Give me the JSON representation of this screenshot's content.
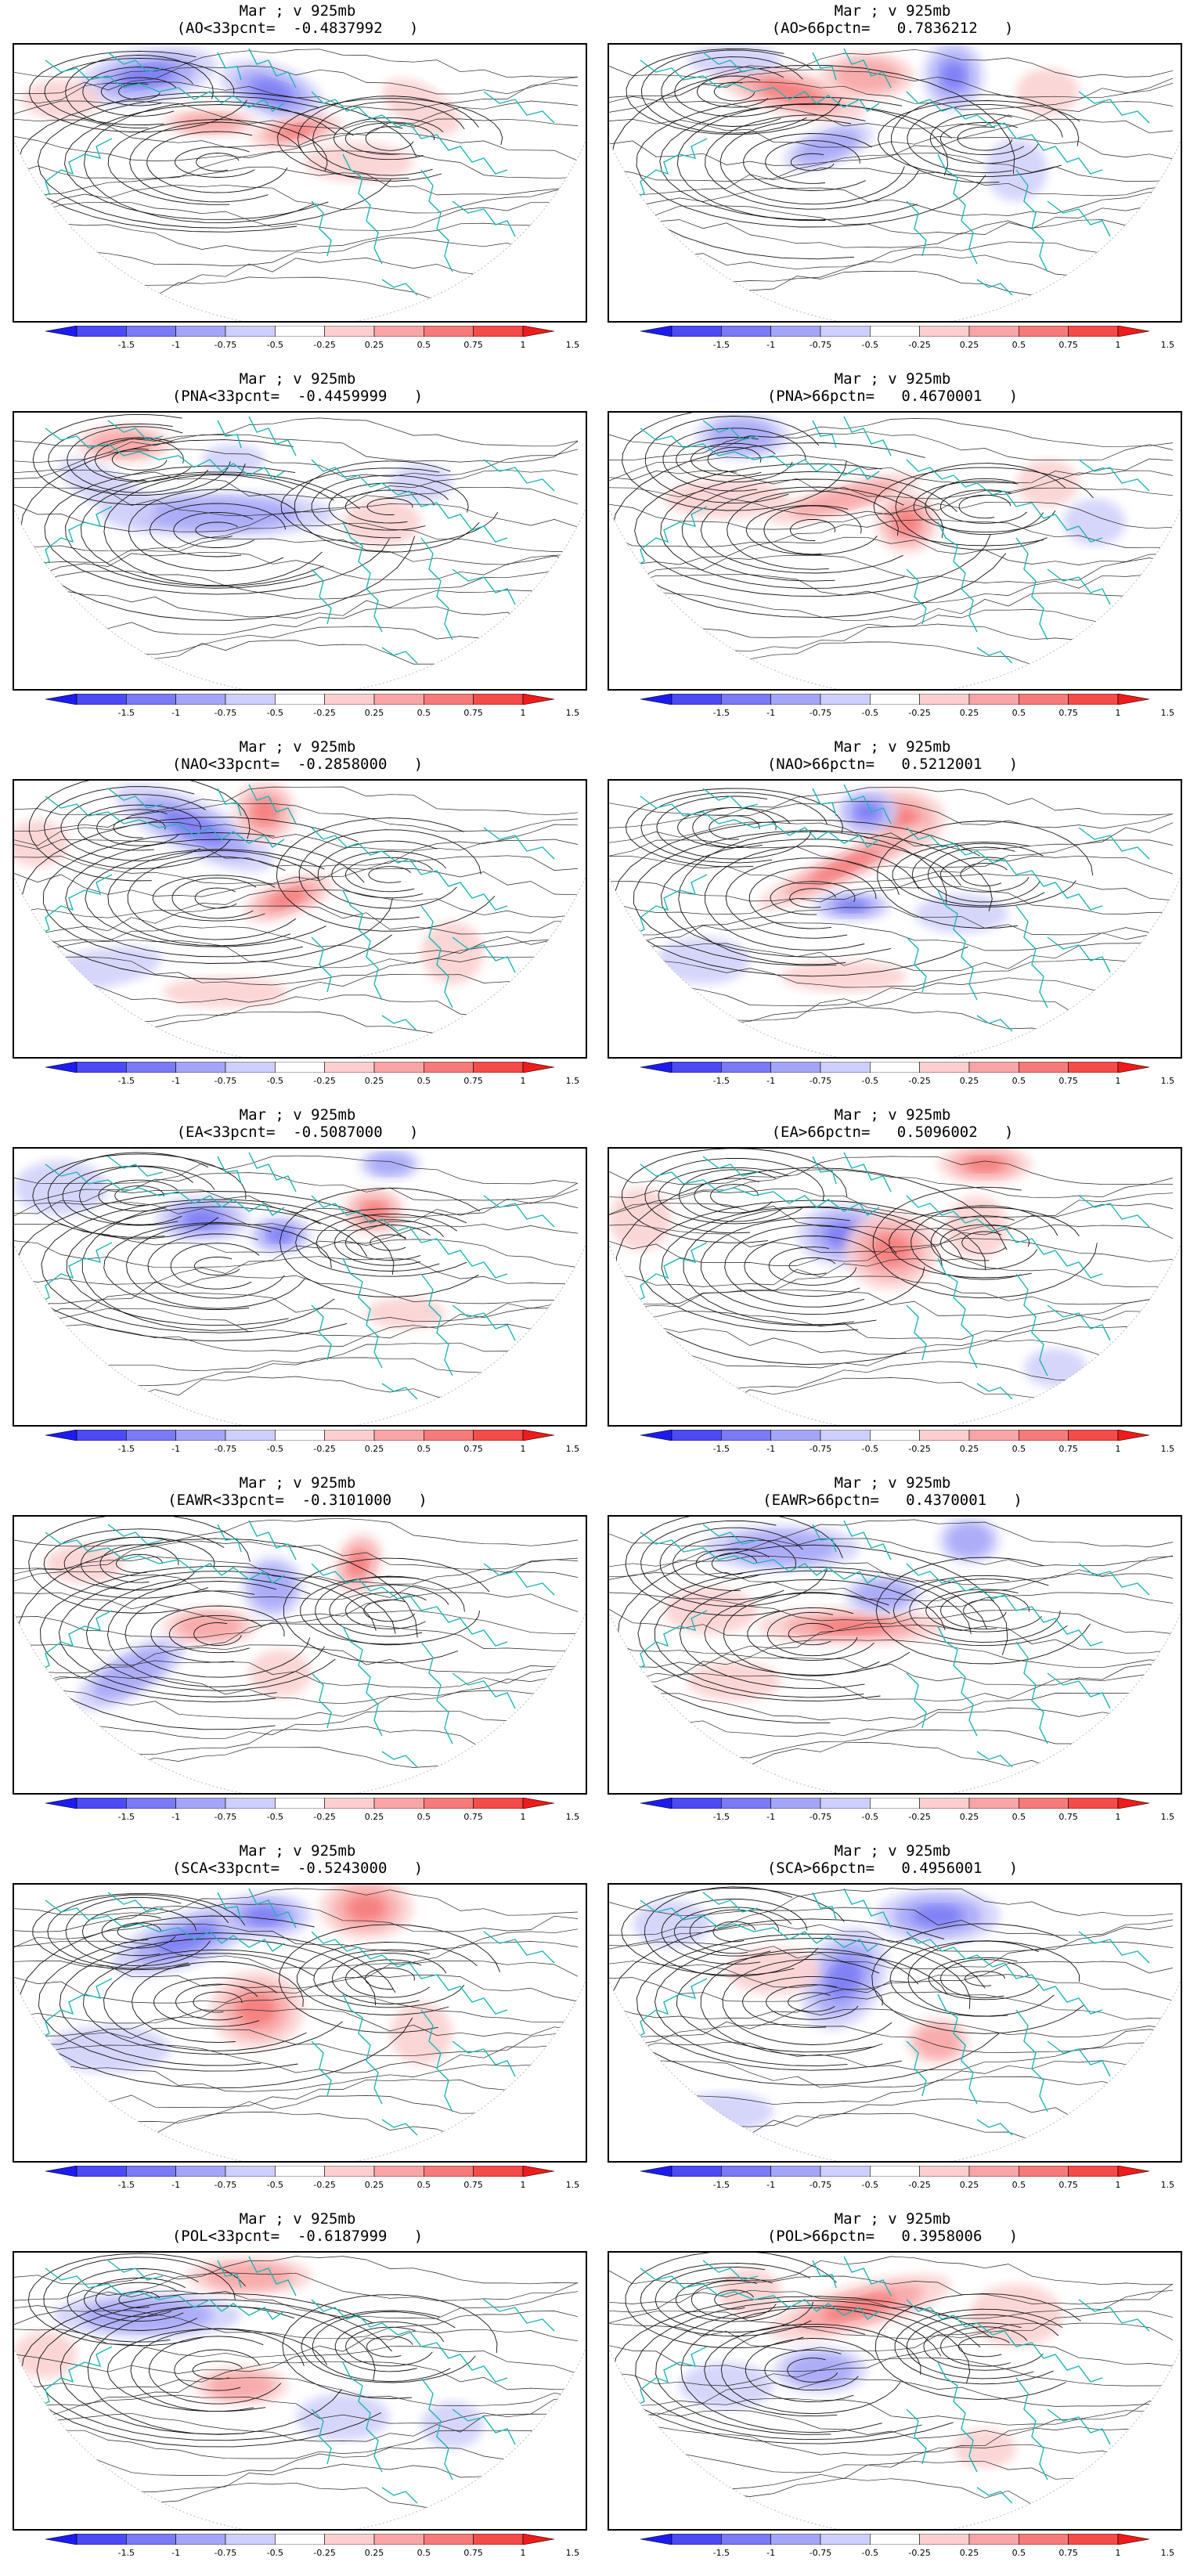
{
  "colorbar": {
    "ticks": [
      "-1.5",
      "-1",
      "-0.75",
      "-0.5",
      "-0.25",
      "0.25",
      "0.5",
      "0.75",
      "1",
      "1.5"
    ],
    "colors": [
      "#1b1bf0",
      "#4b4bf4",
      "#7a7af6",
      "#a5a5f8",
      "#cfcffb",
      "#ffffff",
      "#fbcfcf",
      "#f8a5a5",
      "#f67a7a",
      "#f44b4b",
      "#f01b1b"
    ]
  },
  "panels": [
    {
      "line1": "Mar ; v 925mb",
      "line2": "(AO<33pcnt=  -0.4837992   )"
    },
    {
      "line1": "Mar ; v 925mb",
      "line2": "(AO>66pctn=   0.7836212   )"
    },
    {
      "line1": "Mar ; v 925mb",
      "line2": "(PNA<33pcnt=  -0.4459999   )"
    },
    {
      "line1": "Mar ; v 925mb",
      "line2": "(PNA>66pctn=   0.4670001   )"
    },
    {
      "line1": "Mar ; v 925mb",
      "line2": "(NAO<33pcnt=  -0.2858000   )"
    },
    {
      "line1": "Mar ; v 925mb",
      "line2": "(NAO>66pctn=   0.5212001   )"
    },
    {
      "line1": "Mar ; v 925mb",
      "line2": "(EA<33pcnt=  -0.5087000   )"
    },
    {
      "line1": "Mar ; v 925mb",
      "line2": "(EA>66pctn=   0.5096002   )"
    },
    {
      "line1": "Mar ; v 925mb",
      "line2": "(EAWR<33pcnt=  -0.3101000   )"
    },
    {
      "line1": "Mar ; v 925mb",
      "line2": "(EAWR>66pctn=   0.4370001   )"
    },
    {
      "line1": "Mar ; v 925mb",
      "line2": "(SCA<33pcnt=  -0.5243000   )"
    },
    {
      "line1": "Mar ; v 925mb",
      "line2": "(SCA>66pctn=   0.4956001   )"
    },
    {
      "line1": "Mar ; v 925mb",
      "line2": "(POL<33pcnt=  -0.6187999   )"
    },
    {
      "line1": "Mar ; v 925mb",
      "line2": "(POL>66pctn=   0.3958006   )"
    }
  ]
}
